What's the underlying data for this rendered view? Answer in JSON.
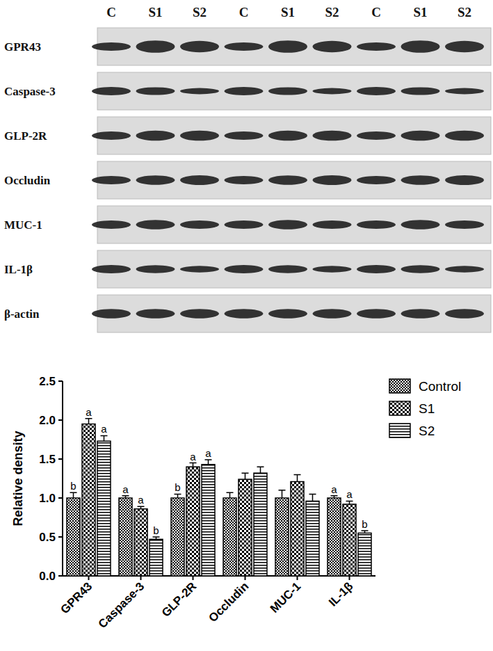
{
  "blot": {
    "lanes": [
      "C",
      "S1",
      "S2",
      "C",
      "S1",
      "S2",
      "C",
      "S1",
      "S2"
    ],
    "proteins": [
      "GPR43",
      "Caspase-3",
      "GLP-2R",
      "Occludin",
      "MUC-1",
      "IL-1β",
      "β-actin"
    ]
  },
  "chart_data": {
    "type": "bar",
    "y_label": "Relative density",
    "categories": [
      "GPR43",
      "Caspase-3",
      "GLP-2R",
      "Occludin",
      "MUC-1",
      "IL-1β"
    ],
    "series": [
      {
        "name": "Control",
        "color": "#000000",
        "values": [
          1.0,
          1.0,
          1.0,
          1.0,
          1.0,
          1.0
        ],
        "errors": [
          0.07,
          0.03,
          0.05,
          0.07,
          0.1,
          0.03
        ],
        "letters": [
          "b",
          "a",
          "b",
          null,
          null,
          "a"
        ]
      },
      {
        "name": "S1",
        "color": "#000000",
        "values": [
          1.95,
          0.86,
          1.4,
          1.24,
          1.21,
          0.92
        ],
        "errors": [
          0.07,
          0.03,
          0.05,
          0.08,
          0.09,
          0.04
        ],
        "letters": [
          "a",
          "a",
          "a",
          null,
          null,
          "a"
        ]
      },
      {
        "name": "S2",
        "color": "#000000",
        "values": [
          1.73,
          0.47,
          1.43,
          1.32,
          0.96,
          0.55
        ],
        "errors": [
          0.07,
          0.03,
          0.06,
          0.08,
          0.09,
          0.03
        ],
        "letters": [
          "a",
          "b",
          "a",
          null,
          null,
          "b"
        ]
      }
    ],
    "ylim": [
      0,
      2.5
    ],
    "yticks": [
      {
        "value": 0,
        "label": "0.0"
      },
      {
        "value": 0.5,
        "label": "0.5"
      },
      {
        "value": 1,
        "label": "1.0"
      },
      {
        "value": 1.5,
        "label": "1.5"
      },
      {
        "value": 2,
        "label": "2.0"
      },
      {
        "value": 2.5,
        "label": "2.5"
      }
    ],
    "legend": "right",
    "grid": false
  }
}
